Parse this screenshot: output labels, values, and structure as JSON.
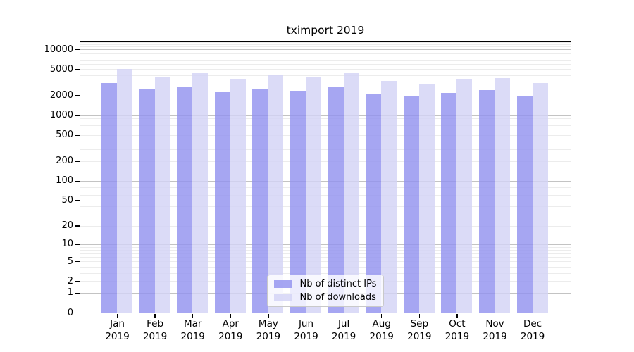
{
  "chart_data": {
    "type": "bar",
    "title": "tximport 2019",
    "x_axis": {
      "categories": [
        "Jan",
        "Feb",
        "Mar",
        "Apr",
        "May",
        "Jun",
        "Jul",
        "Aug",
        "Sep",
        "Oct",
        "Nov",
        "Dec"
      ],
      "year": "2019"
    },
    "y_axis": {
      "scale": "log10(1+y)",
      "ticks": [
        0,
        1,
        2,
        5,
        10,
        20,
        50,
        100,
        200,
        500,
        1000,
        2000,
        5000,
        10000
      ],
      "range": [
        0,
        13200
      ]
    },
    "grid": {
      "show": true,
      "major_color": "#c3c3c3",
      "minor_color": "#ececec"
    },
    "series": [
      {
        "name": "Nb of distinct IPs",
        "color": "#a6a6f2",
        "fill": "rgba(146,146,239,0.82)",
        "values": [
          3100,
          2500,
          2710,
          2320,
          2520,
          2380,
          2640,
          2120,
          2000,
          2210,
          2420,
          1990
        ]
      },
      {
        "name": "Nb of downloads",
        "color": "#dbdbf7",
        "fill": "rgba(211,211,245,0.82)",
        "values": [
          5000,
          3730,
          4440,
          3550,
          4200,
          3770,
          4330,
          3360,
          3040,
          3620,
          3650,
          3120
        ]
      }
    ],
    "legend": {
      "position": "inside-bottom-center",
      "background": "rgba(255,255,255,0.8)",
      "border_color": "#c9c9c9"
    }
  }
}
